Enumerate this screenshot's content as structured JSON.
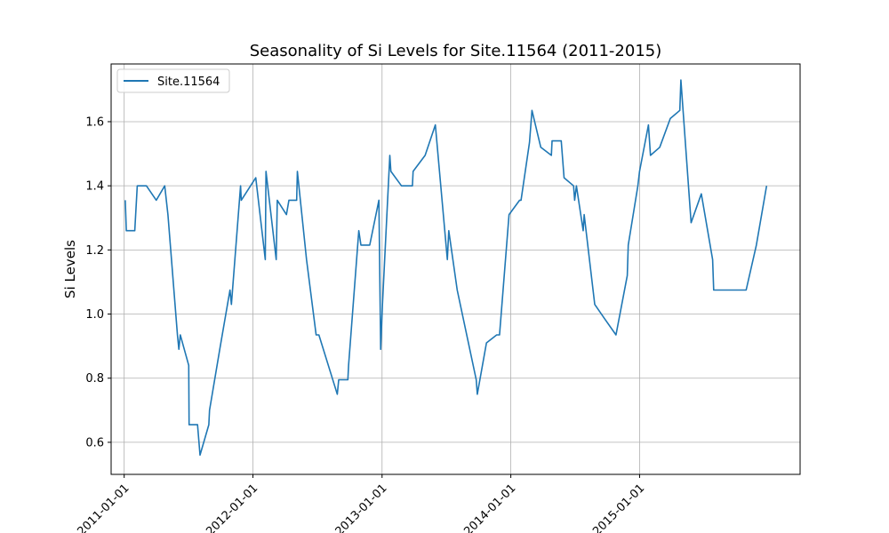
{
  "chart_data": {
    "type": "line",
    "title": "Seasonality of Si Levels for Site.11564 (2011-2015)",
    "xlabel": "",
    "ylabel": "Si Levels",
    "xlim": [
      "2010-11-25",
      "2016-03-31"
    ],
    "ylim": [
      0.5,
      1.78
    ],
    "x_ticks": [
      "2011-01-01",
      "2012-01-01",
      "2013-01-01",
      "2014-01-01",
      "2015-01-01"
    ],
    "y_ticks": [
      0.6,
      0.8,
      1.0,
      1.2,
      1.4,
      1.6
    ],
    "y_tick_labels": [
      "0.6",
      "0.8",
      "1.0",
      "1.2",
      "1.4",
      "1.6"
    ],
    "grid": true,
    "legend_position": "top-left",
    "series": [
      {
        "name": "Site.11564",
        "color": "#1f77b4",
        "points": [
          [
            "2011-01-04",
            1.355
          ],
          [
            "2011-01-07",
            1.26
          ],
          [
            "2011-01-31",
            1.26
          ],
          [
            "2011-02-07",
            1.4
          ],
          [
            "2011-03-05",
            1.4
          ],
          [
            "2011-04-02",
            1.355
          ],
          [
            "2011-04-26",
            1.4
          ],
          [
            "2011-05-05",
            1.31
          ],
          [
            "2011-06-01",
            0.935
          ],
          [
            "2011-06-05",
            0.89
          ],
          [
            "2011-06-09",
            0.935
          ],
          [
            "2011-07-03",
            0.84
          ],
          [
            "2011-07-04",
            0.655
          ],
          [
            "2011-07-28",
            0.655
          ],
          [
            "2011-08-04",
            0.56
          ],
          [
            "2011-08-29",
            0.655
          ],
          [
            "2011-08-31",
            0.7
          ],
          [
            "2011-09-29",
            0.89
          ],
          [
            "2011-10-28",
            1.075
          ],
          [
            "2011-11-01",
            1.03
          ],
          [
            "2011-11-27",
            1.4
          ],
          [
            "2011-11-29",
            1.355
          ],
          [
            "2012-01-09",
            1.425
          ],
          [
            "2012-02-05",
            1.17
          ],
          [
            "2012-02-07",
            1.445
          ],
          [
            "2012-03-07",
            1.17
          ],
          [
            "2012-03-10",
            1.355
          ],
          [
            "2012-04-05",
            1.31
          ],
          [
            "2012-04-12",
            1.355
          ],
          [
            "2012-05-04",
            1.355
          ],
          [
            "2012-05-06",
            1.445
          ],
          [
            "2012-06-01",
            1.17
          ],
          [
            "2012-06-28",
            0.935
          ],
          [
            "2012-07-06",
            0.935
          ],
          [
            "2012-08-27",
            0.75
          ],
          [
            "2012-08-31",
            0.795
          ],
          [
            "2012-09-26",
            0.795
          ],
          [
            "2012-09-28",
            0.84
          ],
          [
            "2012-10-27",
            1.26
          ],
          [
            "2012-11-02",
            1.215
          ],
          [
            "2012-11-27",
            1.215
          ],
          [
            "2012-12-23",
            1.355
          ],
          [
            "2012-12-28",
            0.89
          ],
          [
            "2013-01-02",
            1.03
          ],
          [
            "2013-01-23",
            1.495
          ],
          [
            "2013-01-26",
            1.445
          ],
          [
            "2013-02-25",
            1.4
          ],
          [
            "2013-03-28",
            1.4
          ],
          [
            "2013-03-30",
            1.445
          ],
          [
            "2013-05-03",
            1.495
          ],
          [
            "2013-06-01",
            1.59
          ],
          [
            "2013-07-05",
            1.17
          ],
          [
            "2013-07-09",
            1.26
          ],
          [
            "2013-08-02",
            1.075
          ],
          [
            "2013-09-25",
            0.795
          ],
          [
            "2013-09-28",
            0.75
          ],
          [
            "2013-10-24",
            0.91
          ],
          [
            "2013-11-22",
            0.935
          ],
          [
            "2013-11-30",
            0.935
          ],
          [
            "2013-12-27",
            1.31
          ],
          [
            "2014-01-26",
            1.355
          ],
          [
            "2014-01-30",
            1.355
          ],
          [
            "2014-02-23",
            1.535
          ],
          [
            "2014-03-02",
            1.635
          ],
          [
            "2014-03-27",
            1.52
          ],
          [
            "2014-04-26",
            1.495
          ],
          [
            "2014-04-28",
            1.54
          ],
          [
            "2014-05-24",
            1.54
          ],
          [
            "2014-06-01",
            1.425
          ],
          [
            "2014-06-28",
            1.4
          ],
          [
            "2014-07-01",
            1.355
          ],
          [
            "2014-07-06",
            1.4
          ],
          [
            "2014-07-25",
            1.26
          ],
          [
            "2014-07-28",
            1.31
          ],
          [
            "2014-08-27",
            1.03
          ],
          [
            "2014-09-24",
            0.985
          ],
          [
            "2014-10-26",
            0.935
          ],
          [
            "2014-11-27",
            1.12
          ],
          [
            "2014-11-30",
            1.215
          ],
          [
            "2014-12-27",
            1.4
          ],
          [
            "2015-01-01",
            1.445
          ],
          [
            "2015-01-26",
            1.59
          ],
          [
            "2015-02-01",
            1.495
          ],
          [
            "2015-02-27",
            1.52
          ],
          [
            "2015-03-29",
            1.61
          ],
          [
            "2015-04-25",
            1.635
          ],
          [
            "2015-04-28",
            1.73
          ],
          [
            "2015-05-27",
            1.285
          ],
          [
            "2015-06-25",
            1.375
          ],
          [
            "2015-07-27",
            1.17
          ],
          [
            "2015-07-30",
            1.075
          ],
          [
            "2015-10-30",
            1.075
          ],
          [
            "2015-11-28",
            1.215
          ],
          [
            "2015-12-27",
            1.4
          ]
        ]
      }
    ]
  }
}
